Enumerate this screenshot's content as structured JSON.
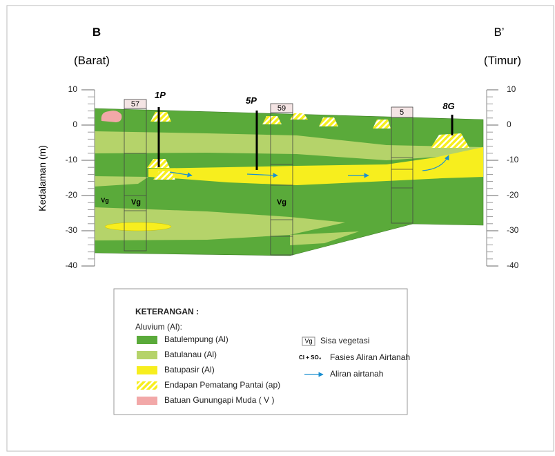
{
  "left_label": "B",
  "left_sub": "(Barat)",
  "right_label": "B’",
  "right_sub": "(Timur)",
  "axis": {
    "title": "Kedalaman (m)",
    "ticks": [
      10,
      0,
      -10,
      -20,
      -30,
      -40
    ]
  },
  "wells": [
    {
      "label": "1P"
    },
    {
      "label": "5P"
    },
    {
      "label": "8G"
    }
  ],
  "boreholes": [
    {
      "label": "57"
    },
    {
      "label": "59"
    },
    {
      "label": "5"
    }
  ],
  "vg_labels": [
    "Vg",
    "Vg",
    "Vg"
  ],
  "legend": {
    "title": "KETERANGAN :",
    "subtitle": "Aluvium  (Al):",
    "items": [
      {
        "label": "Batulempung (Al)"
      },
      {
        "label": "Batulanau (Al)"
      },
      {
        "label": "Batupasir (Al)"
      },
      {
        "label": "Endapan Pematang Pantai (ap)"
      },
      {
        "label": "Batuan Gunungapi Muda ( V )"
      }
    ],
    "right_items": [
      {
        "symbol": "Vg",
        "label": "Sisa vegetasi"
      },
      {
        "symbol": "Cl + SO₄",
        "label": "Fasies Aliran Airtanah"
      },
      {
        "label": "Aliran airtanah"
      }
    ]
  }
}
